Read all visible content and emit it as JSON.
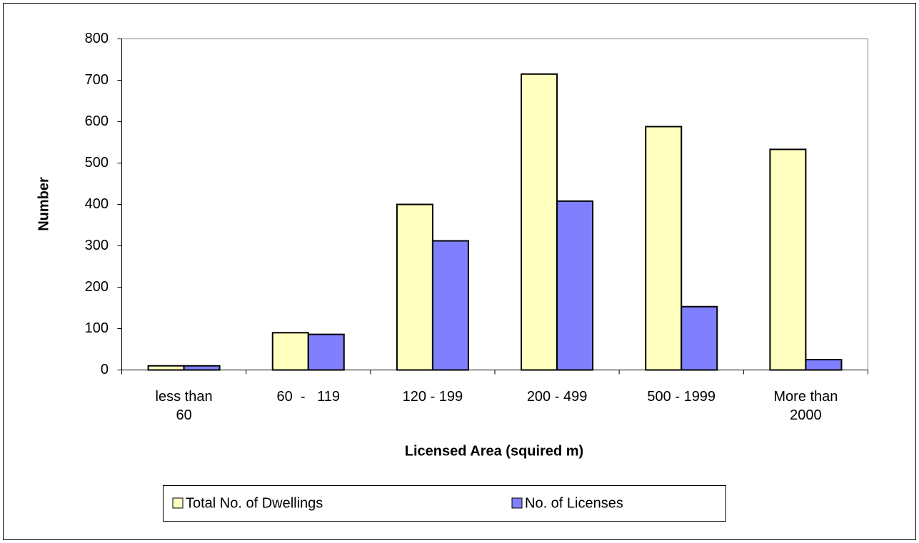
{
  "chart_data": {
    "type": "bar",
    "x_label": "Licensed Area (squired m)",
    "y_label": "Number",
    "categories": [
      "less than 60",
      "60  -   119",
      "120 - 199",
      "200 - 499",
      "500 - 1999",
      "More than 2000"
    ],
    "series": [
      {
        "name": "Total No. of  Dwellings",
        "color": "#ffffc0",
        "values": [
          10,
          90,
          400,
          715,
          588,
          533
        ]
      },
      {
        "name": "No. of  Licenses",
        "color": "#8080ff",
        "values": [
          10,
          86,
          312,
          408,
          153,
          25
        ]
      }
    ],
    "ylim": [
      0,
      800
    ],
    "yticks": [
      0,
      100,
      200,
      300,
      400,
      500,
      600,
      700,
      800
    ],
    "grid": false,
    "legend": "bottom"
  }
}
